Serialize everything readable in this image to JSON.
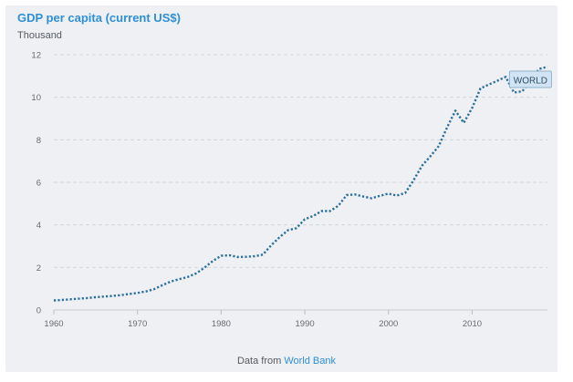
{
  "header": {
    "title": "GDP per capita (current US$)",
    "unit": "Thousand"
  },
  "footer": {
    "prefix": "Data from",
    "link_text": "World Bank"
  },
  "colors": {
    "line": "#2a6f9c",
    "title": "#2f8fd6",
    "grid": "#d2d6dc",
    "label_bg": "#d2e4f3"
  },
  "chart_data": {
    "type": "line",
    "title": "GDP per capita (current US$)",
    "ylabel": "Thousand",
    "xlabel": "",
    "xlim": [
      1960,
      2019
    ],
    "ylim": [
      0,
      12
    ],
    "x_ticks": [
      1960,
      1970,
      1980,
      1990,
      2000,
      2010
    ],
    "y_ticks": [
      0,
      2,
      4,
      6,
      8,
      10,
      12
    ],
    "grid": true,
    "series_label": "WORLD",
    "series": [
      {
        "name": "WORLD",
        "x": [
          1960,
          1961,
          1962,
          1963,
          1964,
          1965,
          1966,
          1967,
          1968,
          1969,
          1970,
          1971,
          1972,
          1973,
          1974,
          1975,
          1976,
          1977,
          1978,
          1979,
          1980,
          1981,
          1982,
          1983,
          1984,
          1985,
          1986,
          1987,
          1988,
          1989,
          1990,
          1991,
          1992,
          1993,
          1994,
          1995,
          1996,
          1997,
          1998,
          1999,
          2000,
          2001,
          2002,
          2003,
          2004,
          2005,
          2006,
          2007,
          2008,
          2009,
          2010,
          2011,
          2012,
          2013,
          2014,
          2015,
          2016,
          2017,
          2018,
          2019
        ],
        "y": [
          0.45,
          0.47,
          0.5,
          0.53,
          0.56,
          0.6,
          0.63,
          0.66,
          0.7,
          0.75,
          0.8,
          0.87,
          0.98,
          1.17,
          1.34,
          1.45,
          1.55,
          1.72,
          1.99,
          2.3,
          2.55,
          2.57,
          2.49,
          2.5,
          2.53,
          2.6,
          3.05,
          3.43,
          3.75,
          3.85,
          4.27,
          4.42,
          4.65,
          4.65,
          4.9,
          5.4,
          5.43,
          5.33,
          5.25,
          5.37,
          5.47,
          5.38,
          5.5,
          6.1,
          6.78,
          7.22,
          7.7,
          8.58,
          9.37,
          8.8,
          9.5,
          10.42,
          10.6,
          10.77,
          10.96,
          10.22,
          10.28,
          10.8,
          11.33,
          11.43
        ]
      }
    ]
  }
}
